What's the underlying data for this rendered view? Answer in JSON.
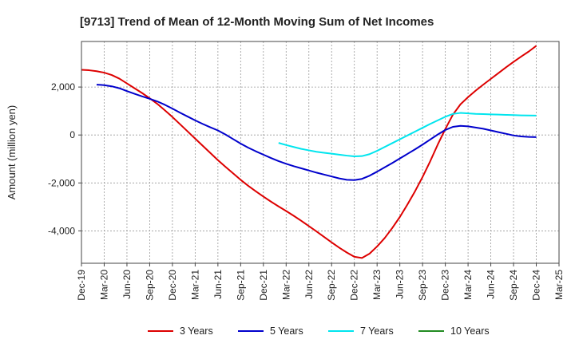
{
  "chart_data": {
    "type": "line",
    "title": "[9713]  Trend of Mean of 12-Month Moving Sum of Net Incomes",
    "ylabel": "Amount (million yen)",
    "xlabel": "",
    "x_ticks": [
      "Dec-19",
      "Mar-20",
      "Jun-20",
      "Sep-20",
      "Dec-20",
      "Mar-21",
      "Jun-21",
      "Sep-21",
      "Dec-21",
      "Mar-22",
      "Jun-22",
      "Sep-22",
      "Dec-22",
      "Mar-23",
      "Jun-23",
      "Sep-23",
      "Dec-23",
      "Mar-24",
      "Jun-24",
      "Sep-24",
      "Dec-24",
      "Mar-25"
    ],
    "y_ticks": [
      2000,
      0,
      -2000,
      -4000
    ],
    "y_tick_labels": [
      "2,000",
      "0",
      "-2,000",
      "-4,000"
    ],
    "ylim": [
      -5350,
      3900
    ],
    "xlim": [
      "Dec-19",
      "Mar-25"
    ],
    "grid": true,
    "legend_position": "bottom",
    "series": [
      {
        "name": "3 Years",
        "color": "#dd0000",
        "points": [
          [
            "Dec-19",
            2720
          ],
          [
            "Jan-20",
            2700
          ],
          [
            "Feb-20",
            2660
          ],
          [
            "Mar-20",
            2600
          ],
          [
            "Apr-20",
            2500
          ],
          [
            "May-20",
            2350
          ],
          [
            "Jun-20",
            2150
          ],
          [
            "Jul-20",
            1950
          ],
          [
            "Aug-20",
            1750
          ],
          [
            "Sep-20",
            1530
          ],
          [
            "Oct-20",
            1300
          ],
          [
            "Nov-20",
            1030
          ],
          [
            "Dec-20",
            750
          ],
          [
            "Jan-21",
            450
          ],
          [
            "Feb-21",
            150
          ],
          [
            "Mar-21",
            -150
          ],
          [
            "Apr-21",
            -450
          ],
          [
            "May-21",
            -750
          ],
          [
            "Jun-21",
            -1050
          ],
          [
            "Jul-21",
            -1330
          ],
          [
            "Aug-21",
            -1600
          ],
          [
            "Sep-21",
            -1870
          ],
          [
            "Oct-21",
            -2120
          ],
          [
            "Nov-21",
            -2350
          ],
          [
            "Dec-21",
            -2570
          ],
          [
            "Jan-22",
            -2780
          ],
          [
            "Feb-22",
            -2980
          ],
          [
            "Mar-22",
            -3170
          ],
          [
            "Apr-22",
            -3370
          ],
          [
            "May-22",
            -3580
          ],
          [
            "Jun-22",
            -3800
          ],
          [
            "Jul-22",
            -4020
          ],
          [
            "Aug-22",
            -4250
          ],
          [
            "Sep-22",
            -4480
          ],
          [
            "Oct-22",
            -4700
          ],
          [
            "Nov-22",
            -4900
          ],
          [
            "Dec-22",
            -5080
          ],
          [
            "Jan-23",
            -5130
          ],
          [
            "Feb-23",
            -4950
          ],
          [
            "Mar-23",
            -4650
          ],
          [
            "Apr-23",
            -4300
          ],
          [
            "May-23",
            -3880
          ],
          [
            "Jun-23",
            -3420
          ],
          [
            "Jul-23",
            -2900
          ],
          [
            "Aug-23",
            -2350
          ],
          [
            "Sep-23",
            -1750
          ],
          [
            "Oct-23",
            -1100
          ],
          [
            "Nov-23",
            -400
          ],
          [
            "Dec-23",
            250
          ],
          [
            "Jan-24",
            850
          ],
          [
            "Feb-24",
            1280
          ],
          [
            "Mar-24",
            1580
          ],
          [
            "Apr-24",
            1850
          ],
          [
            "May-24",
            2100
          ],
          [
            "Jun-24",
            2340
          ],
          [
            "Jul-24",
            2580
          ],
          [
            "Aug-24",
            2820
          ],
          [
            "Sep-24",
            3050
          ],
          [
            "Oct-24",
            3270
          ],
          [
            "Nov-24",
            3480
          ],
          [
            "Dec-24",
            3720
          ]
        ]
      },
      {
        "name": "5 Years",
        "color": "#0000cc",
        "points": [
          [
            "Feb-20",
            2100
          ],
          [
            "Mar-20",
            2080
          ],
          [
            "Apr-20",
            2030
          ],
          [
            "May-20",
            1950
          ],
          [
            "Jun-20",
            1830
          ],
          [
            "Jul-20",
            1720
          ],
          [
            "Aug-20",
            1610
          ],
          [
            "Sep-20",
            1510
          ],
          [
            "Oct-20",
            1400
          ],
          [
            "Nov-20",
            1260
          ],
          [
            "Dec-20",
            1100
          ],
          [
            "Jan-21",
            930
          ],
          [
            "Feb-21",
            770
          ],
          [
            "Mar-21",
            610
          ],
          [
            "Apr-21",
            460
          ],
          [
            "May-21",
            320
          ],
          [
            "Jun-21",
            190
          ],
          [
            "Jul-21",
            20
          ],
          [
            "Aug-21",
            -170
          ],
          [
            "Sep-21",
            -360
          ],
          [
            "Oct-21",
            -530
          ],
          [
            "Nov-21",
            -680
          ],
          [
            "Dec-21",
            -820
          ],
          [
            "Jan-22",
            -960
          ],
          [
            "Feb-22",
            -1090
          ],
          [
            "Mar-22",
            -1200
          ],
          [
            "Apr-22",
            -1300
          ],
          [
            "May-22",
            -1390
          ],
          [
            "Jun-22",
            -1480
          ],
          [
            "Jul-22",
            -1570
          ],
          [
            "Aug-22",
            -1650
          ],
          [
            "Sep-22",
            -1730
          ],
          [
            "Oct-22",
            -1810
          ],
          [
            "Nov-22",
            -1870
          ],
          [
            "Dec-22",
            -1880
          ],
          [
            "Jan-23",
            -1830
          ],
          [
            "Feb-23",
            -1700
          ],
          [
            "Mar-23",
            -1530
          ],
          [
            "Apr-23",
            -1350
          ],
          [
            "May-23",
            -1170
          ],
          [
            "Jun-23",
            -980
          ],
          [
            "Jul-23",
            -790
          ],
          [
            "Aug-23",
            -600
          ],
          [
            "Sep-23",
            -400
          ],
          [
            "Oct-23",
            -190
          ],
          [
            "Nov-23",
            20
          ],
          [
            "Dec-23",
            210
          ],
          [
            "Jan-24",
            340
          ],
          [
            "Feb-24",
            380
          ],
          [
            "Mar-24",
            360
          ],
          [
            "Apr-24",
            310
          ],
          [
            "May-24",
            260
          ],
          [
            "Jun-24",
            190
          ],
          [
            "Jul-24",
            120
          ],
          [
            "Aug-24",
            50
          ],
          [
            "Sep-24",
            -20
          ],
          [
            "Oct-24",
            -60
          ],
          [
            "Nov-24",
            -80
          ],
          [
            "Dec-24",
            -90
          ]
        ]
      },
      {
        "name": "7 Years",
        "color": "#00e5ee",
        "points": [
          [
            "Feb-22",
            -330
          ],
          [
            "Mar-22",
            -420
          ],
          [
            "Apr-22",
            -500
          ],
          [
            "May-22",
            -580
          ],
          [
            "Jun-22",
            -640
          ],
          [
            "Jul-22",
            -700
          ],
          [
            "Aug-22",
            -740
          ],
          [
            "Sep-22",
            -780
          ],
          [
            "Oct-22",
            -820
          ],
          [
            "Nov-22",
            -860
          ],
          [
            "Dec-22",
            -890
          ],
          [
            "Jan-23",
            -880
          ],
          [
            "Feb-23",
            -800
          ],
          [
            "Mar-23",
            -660
          ],
          [
            "Apr-23",
            -500
          ],
          [
            "May-23",
            -340
          ],
          [
            "Jun-23",
            -180
          ],
          [
            "Jul-23",
            -20
          ],
          [
            "Aug-23",
            140
          ],
          [
            "Sep-23",
            300
          ],
          [
            "Oct-23",
            460
          ],
          [
            "Nov-23",
            610
          ],
          [
            "Dec-23",
            760
          ],
          [
            "Jan-24",
            880
          ],
          [
            "Feb-24",
            920
          ],
          [
            "Mar-24",
            900
          ],
          [
            "Apr-24",
            880
          ],
          [
            "May-24",
            870
          ],
          [
            "Jun-24",
            860
          ],
          [
            "Jul-24",
            850
          ],
          [
            "Aug-24",
            840
          ],
          [
            "Sep-24",
            830
          ],
          [
            "Oct-24",
            820
          ],
          [
            "Nov-24",
            815
          ],
          [
            "Dec-24",
            810
          ]
        ]
      },
      {
        "name": "10 Years",
        "color": "#228b22",
        "points": []
      }
    ]
  }
}
